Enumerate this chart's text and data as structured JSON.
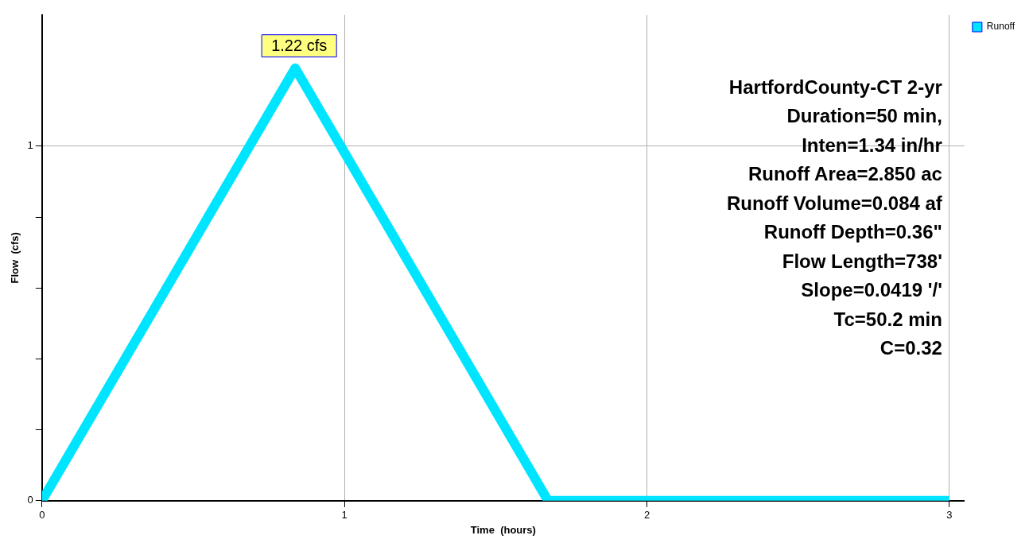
{
  "chart_data": {
    "type": "line",
    "xlabel": "Time  (hours)",
    "ylabel": "Flow  (cfs)",
    "x": [
      0,
      0.837,
      1.673,
      3
    ],
    "series": [
      {
        "name": "Runoff",
        "color": "#00e5ff",
        "values": [
          0,
          1.22,
          0,
          0
        ]
      }
    ],
    "xlim": [
      0,
      3.05
    ],
    "xticks": [
      0,
      1,
      2,
      3
    ],
    "ylim": [
      0,
      1.37
    ],
    "yticks": [
      0,
      {
        "value": 0.2,
        "label": null
      },
      {
        "value": 0.4,
        "label": null
      },
      {
        "value": 0.6,
        "label": null
      },
      {
        "value": 0.8,
        "label": null
      },
      1
    ],
    "grid": true,
    "legend": "top right",
    "marker": "none",
    "line_style": "solid",
    "annotations": [
      {
        "text": "1.22 cfs",
        "x": 0.837,
        "y": 1.22
      },
      "HartfordCounty-CT 2-yr",
      "Duration=50 min,",
      "Inten=1.34 in/hr",
      "Runoff Area=2.850 ac",
      "Runoff Volume=0.084 af",
      "Runoff Depth=0.36\"",
      "Flow Length=738'",
      "Slope=0.0419 '/'",
      "Tc=50.2 min",
      "C=0.32"
    ]
  }
}
